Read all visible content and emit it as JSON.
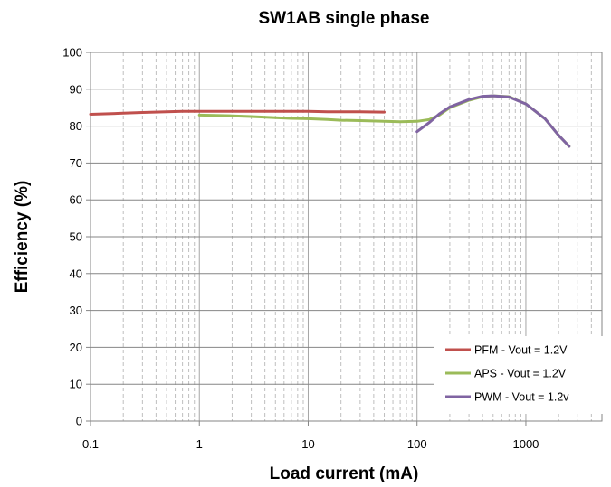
{
  "chart_data": {
    "type": "line",
    "title": "SW1AB single phase",
    "xlabel": "Load current (mA)",
    "ylabel": "Efficiency (%)",
    "x_scale": "log",
    "xlim": [
      0.1,
      5000
    ],
    "ylim": [
      0,
      100
    ],
    "x_ticks": [
      0.1,
      1,
      10,
      100,
      1000
    ],
    "x_tick_labels": [
      "0.1",
      "1",
      "10",
      "100",
      "1000"
    ],
    "y_ticks": [
      0,
      10,
      20,
      30,
      40,
      50,
      60,
      70,
      80,
      90,
      100
    ],
    "y_tick_labels": [
      "0",
      "10",
      "20",
      "30",
      "40",
      "50",
      "60",
      "70",
      "80",
      "90",
      "100"
    ],
    "grid": {
      "major_horizontal": true,
      "minor_vertical_dashed": true
    },
    "legend_position": "bottom-right",
    "series": [
      {
        "name": "PFM - Vout = 1.2V",
        "color": "#c0504d",
        "x": [
          0.1,
          0.2,
          0.3,
          0.5,
          0.7,
          1,
          2,
          3,
          5,
          7,
          10,
          15,
          20,
          30,
          50
        ],
        "y": [
          83.2,
          83.5,
          83.7,
          83.9,
          84.0,
          84.0,
          84.0,
          84.0,
          84.0,
          84.0,
          84.0,
          83.9,
          83.9,
          83.9,
          83.8
        ]
      },
      {
        "name": "APS - Vout = 1.2V",
        "color": "#9bbb59",
        "x": [
          1,
          2,
          3,
          5,
          7,
          10,
          15,
          20,
          30,
          50,
          70,
          100,
          130,
          160,
          200,
          300,
          400,
          500,
          700,
          1000,
          1500,
          2000,
          2500
        ],
        "y": [
          83.0,
          82.8,
          82.6,
          82.3,
          82.1,
          82.0,
          81.8,
          81.6,
          81.5,
          81.3,
          81.2,
          81.3,
          81.8,
          83.0,
          85.0,
          87.0,
          88.0,
          88.2,
          88.0,
          86.0,
          82.0,
          77.5,
          74.5
        ]
      },
      {
        "name": "PWM - Vout = 1.2v",
        "color": "#8064a2",
        "x": [
          100,
          130,
          160,
          200,
          300,
          400,
          500,
          700,
          1000,
          1500,
          2000,
          2500
        ],
        "y": [
          78.5,
          81.0,
          83.3,
          85.2,
          87.2,
          88.1,
          88.2,
          87.9,
          86.0,
          82.0,
          77.5,
          74.5
        ]
      }
    ]
  }
}
